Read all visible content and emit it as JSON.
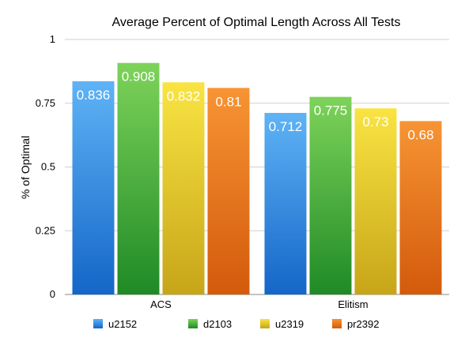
{
  "chart_data": {
    "type": "bar",
    "title": "Average Percent of Optimal Length Across All Tests",
    "xlabel": "",
    "ylabel": "% of Optimal",
    "ylim": [
      0,
      1
    ],
    "yticks": [
      "0",
      "0.25",
      "0.5",
      "0.75",
      "1"
    ],
    "ytick_values": [
      0,
      0.25,
      0.5,
      0.75,
      1
    ],
    "categories": [
      "ACS",
      "Elitism"
    ],
    "series": [
      {
        "name": "u2152",
        "values": [
          0.836,
          0.712
        ],
        "labels": [
          "0.836",
          "0.712"
        ],
        "color": "#2F86E6",
        "light": "#5FB3F5",
        "dark": "#1466C8"
      },
      {
        "name": "d2103",
        "values": [
          0.908,
          0.775
        ],
        "labels": [
          "0.908",
          "0.775"
        ],
        "color": "#3FA83A",
        "light": "#7ED35A",
        "dark": "#1F8A26"
      },
      {
        "name": "u2319",
        "values": [
          0.832,
          0.73
        ],
        "labels": [
          "0.832",
          "0.73"
        ],
        "color": "#E3C224",
        "light": "#F9E443",
        "dark": "#C7A518"
      },
      {
        "name": "pr2392",
        "values": [
          0.81,
          0.68
        ],
        "labels": [
          "0.81",
          "0.68"
        ],
        "color": "#EA7419",
        "light": "#F79434",
        "dark": "#D35A0C"
      }
    ],
    "grid": true,
    "legend_position": "bottom"
  }
}
